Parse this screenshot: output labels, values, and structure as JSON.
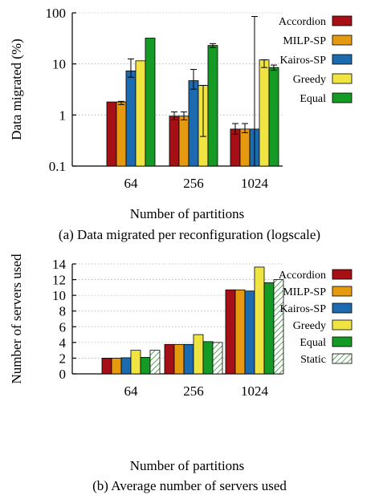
{
  "colors": {
    "Accordion": "#a50f15",
    "MILP-SP": "#e69a10",
    "Kairos-SP": "#1c6bb0",
    "Greedy": "#f0e442",
    "Equal": "#159a26",
    "Static": "#ffffff",
    "static_hatch": "#2e8b2e"
  },
  "chart_data": [
    {
      "type": "bar",
      "title": "",
      "caption": "(a) Data migrated per reconfiguration (logscale)",
      "xlabel": "Number of partitions",
      "ylabel": "Data migrated (%)",
      "yscale": "log",
      "ylim": [
        0.1,
        100
      ],
      "yticks": [
        0.1,
        1,
        10,
        100
      ],
      "ytick_labels": [
        "0.1",
        "1",
        "10",
        "100"
      ],
      "grid": true,
      "legend": "right",
      "categories": [
        "64",
        "256",
        "1024"
      ],
      "series": [
        {
          "name": "Accordion",
          "values": [
            1.8,
            0.95,
            0.53
          ],
          "err_low": [
            1.8,
            0.8,
            0.42
          ],
          "err_high": [
            1.8,
            1.15,
            0.68
          ]
        },
        {
          "name": "MILP-SP",
          "values": [
            1.8,
            0.95,
            0.53
          ],
          "err_low": [
            1.6,
            0.8,
            0.45
          ],
          "err_high": [
            1.85,
            1.15,
            0.68
          ]
        },
        {
          "name": "Kairos-SP",
          "values": [
            7.3,
            4.7,
            0.53
          ],
          "err_low": [
            5.5,
            3.2,
            0.1
          ],
          "err_high": [
            12.5,
            7.8,
            85
          ]
        },
        {
          "name": "Greedy",
          "values": [
            11.5,
            3.8,
            12
          ],
          "err_low": [
            11.5,
            0.38,
            8.5
          ],
          "err_high": [
            11.5,
            3.8,
            12
          ]
        },
        {
          "name": "Equal",
          "values": [
            32,
            23,
            8.5
          ],
          "err_low": [
            32,
            21,
            7.5
          ],
          "err_high": [
            32,
            25,
            9.5
          ]
        }
      ]
    },
    {
      "type": "bar",
      "title": "",
      "caption": "(b) Average number of servers used",
      "xlabel": "Number of partitions",
      "ylabel": "Number of servers used",
      "yscale": "linear",
      "ylim": [
        0,
        14
      ],
      "yticks": [
        0,
        2,
        4,
        6,
        8,
        10,
        12,
        14
      ],
      "ytick_labels": [
        "0",
        "2",
        "4",
        "6",
        "8",
        "10",
        "12",
        "14"
      ],
      "grid": true,
      "legend": "right",
      "categories": [
        "64",
        "256",
        "1024"
      ],
      "series": [
        {
          "name": "Accordion",
          "values": [
            2,
            3.75,
            10.7
          ]
        },
        {
          "name": "MILP-SP",
          "values": [
            2,
            3.75,
            10.7
          ]
        },
        {
          "name": "Kairos-SP",
          "values": [
            2.05,
            3.75,
            10.55
          ]
        },
        {
          "name": "Greedy",
          "values": [
            3,
            5,
            13.6
          ]
        },
        {
          "name": "Equal",
          "values": [
            2.1,
            4.1,
            11.6
          ]
        },
        {
          "name": "Static",
          "values": [
            3,
            4,
            12
          ]
        }
      ]
    }
  ]
}
